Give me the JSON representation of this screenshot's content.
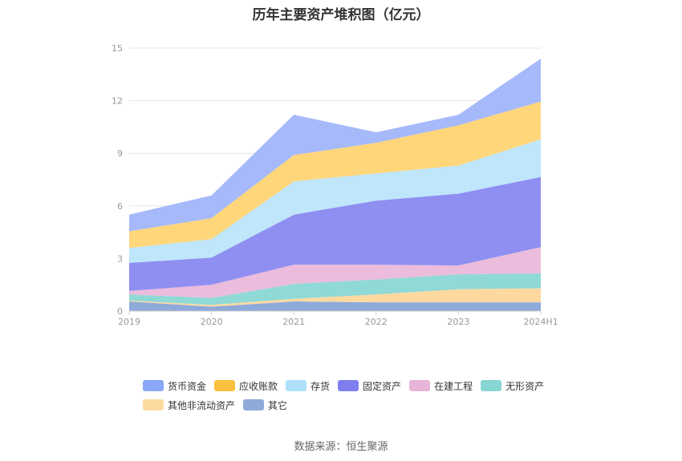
{
  "title": "历年主要资产堆积图（亿元）",
  "source": "数据来源：恒生聚源",
  "chart_data": {
    "type": "area",
    "stacked": true,
    "categories": [
      "2019",
      "2020",
      "2021",
      "2022",
      "2023",
      "2024H1"
    ],
    "ylim": [
      0,
      15
    ],
    "yticks": [
      0,
      3,
      6,
      9,
      12,
      15
    ],
    "grid": true,
    "legend_position": "bottom",
    "series": [
      {
        "name": "其它",
        "color": "#8eaadb",
        "values": [
          0.55,
          0.25,
          0.55,
          0.5,
          0.5,
          0.5
        ]
      },
      {
        "name": "其他非流动资产",
        "color": "#fdd9a0",
        "values": [
          0.05,
          0.1,
          0.15,
          0.45,
          0.75,
          0.8
        ]
      },
      {
        "name": "无形资产",
        "color": "#8fd9d6",
        "values": [
          0.35,
          0.4,
          0.85,
          0.85,
          0.85,
          0.85
        ]
      },
      {
        "name": "在建工程",
        "color": "#ebbcdc",
        "values": [
          0.2,
          0.75,
          1.1,
          0.85,
          0.5,
          1.5
        ]
      },
      {
        "name": "固定资产",
        "color": "#8f8ff2",
        "values": [
          1.6,
          1.55,
          2.85,
          3.65,
          4.1,
          4.0
        ]
      },
      {
        "name": "存货",
        "color": "#bfe6fb",
        "values": [
          0.85,
          1.05,
          1.9,
          1.55,
          1.6,
          2.15
        ]
      },
      {
        "name": "应收账款",
        "color": "#ffd67a",
        "values": [
          0.95,
          1.2,
          1.5,
          1.75,
          2.3,
          2.15
        ]
      },
      {
        "name": "货币资金",
        "color": "#a6b9fa",
        "values": [
          0.95,
          1.3,
          2.3,
          0.6,
          0.6,
          2.45
        ]
      }
    ],
    "legend_order": [
      "货币资金",
      "应收账款",
      "存货",
      "固定资产",
      "在建工程",
      "无形资产",
      "其他非流动资产",
      "其它"
    ],
    "legend_colors": {
      "货币资金": "#89a6f7",
      "应收账款": "#fcc03f",
      "存货": "#aee0fb",
      "固定资产": "#7e7ef0",
      "在建工程": "#e8b4d7",
      "无形资产": "#86d6d3",
      "其他非流动资产": "#fddaa0",
      "其它": "#8eaad9"
    }
  }
}
